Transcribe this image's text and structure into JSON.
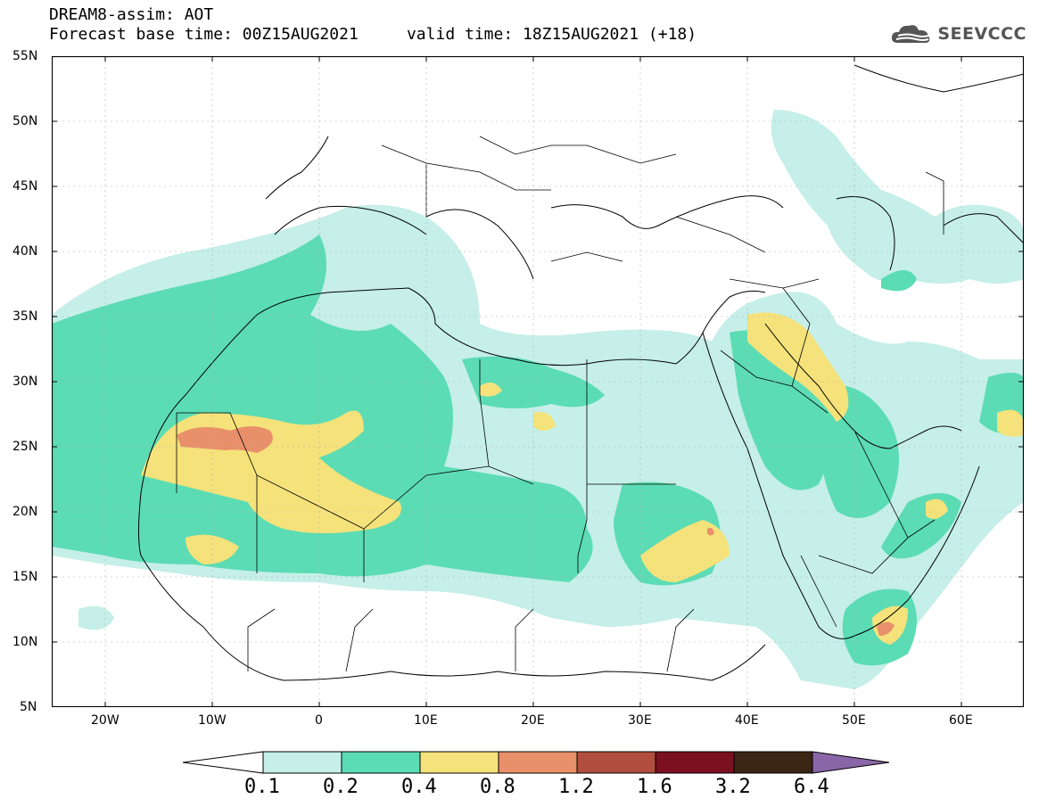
{
  "header": {
    "line1": "DREAM8-assim: AOT",
    "line2": "Forecast base time: 00Z15AUG2021     valid time: 18Z15AUG2021 (+18)"
  },
  "logo": {
    "text": "SEEVCCC",
    "icon": "cloud-icon"
  },
  "map": {
    "latitude_labels": [
      "55N",
      "50N",
      "45N",
      "40N",
      "35N",
      "30N",
      "25N",
      "20N",
      "15N",
      "10N",
      "5N"
    ],
    "longitude_labels": [
      "20W",
      "10W",
      "0",
      "10E",
      "20E",
      "30E",
      "40E",
      "50E",
      "60E"
    ]
  },
  "colorbar": {
    "labels": [
      "0.1",
      "0.2",
      "0.4",
      "0.8",
      "1.2",
      "1.6",
      "3.2",
      "6.4"
    ],
    "colors": [
      "#ffffff",
      "#c5efe8",
      "#5cdcb4",
      "#f5e27a",
      "#e8906a",
      "#b04f3e",
      "#7a1020",
      "#3b2514",
      "#8a66a8"
    ]
  },
  "legend_colors": {
    "c1": "#c5efe8",
    "c2": "#5cdcb4",
    "c3": "#f5e27a",
    "c4": "#e8906a"
  }
}
